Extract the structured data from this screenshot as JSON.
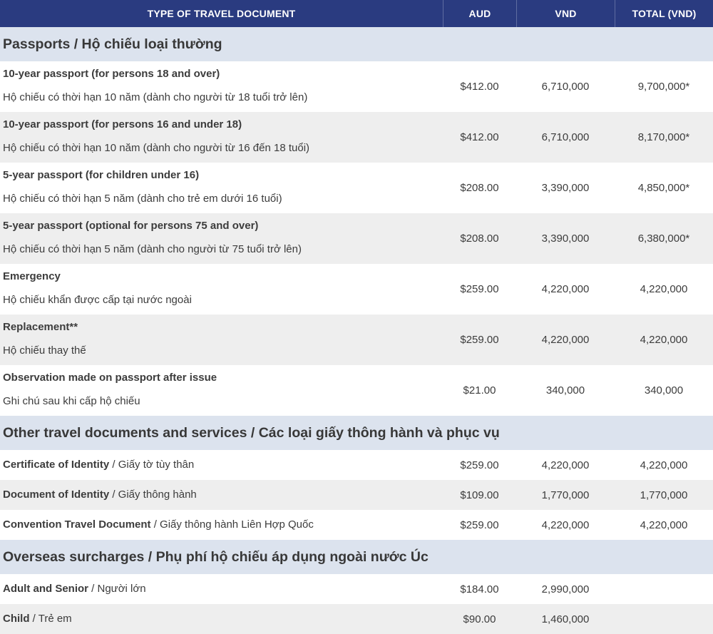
{
  "table": {
    "header": {
      "type": "TYPE OF TRAVEL DOCUMENT",
      "aud": "AUD",
      "vnd": "VND",
      "total": "TOTAL (VND)"
    },
    "sections": [
      {
        "title": "Passports / Hộ chiếu loại thường",
        "rows": [
          {
            "en": "10-year passport (for persons 18 and over)",
            "vi": "Hộ chiếu có thời hạn 10 năm (dành cho người từ 18 tuổi trở lên)",
            "aud": "$412.00",
            "vnd": "6,710,000",
            "total": "9,700,000*",
            "inline": false
          },
          {
            "en": "10-year passport (for persons 16 and under 18)",
            "vi": "Hộ chiếu có thời hạn 10 năm (dành cho người từ 16 đến 18 tuổi)",
            "aud": "$412.00",
            "vnd": "6,710,000",
            "total": "8,170,000*",
            "inline": false
          },
          {
            "en": "5-year passport (for children under 16)",
            "vi": "Hộ chiếu có thời hạn 5 năm (dành cho trẻ em dưới 16 tuổi)",
            "aud": "$208.00",
            "vnd": "3,390,000",
            "total": "4,850,000*",
            "inline": false
          },
          {
            "en": "5-year passport (optional for persons 75 and over)",
            "vi": "Hộ chiếu có thời hạn 5 năm (dành cho người từ 75 tuổi trở lên)",
            "aud": "$208.00",
            "vnd": "3,390,000",
            "total": "6,380,000*",
            "inline": false
          },
          {
            "en": "Emergency",
            "vi": "Hộ chiếu khẩn được cấp tại nước ngoài",
            "aud": "$259.00",
            "vnd": "4,220,000",
            "total": "4,220,000",
            "inline": false
          },
          {
            "en": "Replacement**",
            "vi": "Hộ chiếu thay thế",
            "aud": "$259.00",
            "vnd": "4,220,000",
            "total": "4,220,000",
            "inline": false
          },
          {
            "en": "Observation made on passport after issue",
            "vi": "Ghi chú sau khi cấp hộ chiếu",
            "aud": "$21.00",
            "vnd": "340,000",
            "total": "340,000",
            "inline": false
          }
        ]
      },
      {
        "title": "Other travel documents and services / Các loại giấy thông hành và phục vụ",
        "rows": [
          {
            "en": "Certificate of Identity",
            "vi": "Giấy tờ tùy thân",
            "aud": "$259.00",
            "vnd": "4,220,000",
            "total": "4,220,000",
            "inline": true
          },
          {
            "en": "Document of Identity",
            "vi": "Giấy thông hành",
            "aud": "$109.00",
            "vnd": "1,770,000",
            "total": "1,770,000",
            "inline": true
          },
          {
            "en": "Convention Travel Document",
            "vi": "Giấy thông hành Liên Hợp Quốc",
            "aud": "$259.00",
            "vnd": "4,220,000",
            "total": "4,220,000",
            "inline": true
          }
        ]
      },
      {
        "title": "Overseas surcharges / Phụ phí hộ chiếu áp dụng ngoài nước Úc",
        "rows": [
          {
            "en": "Adult and Senior",
            "vi": "Người lớn",
            "aud": "$184.00",
            "vnd": "2,990,000",
            "total": "",
            "inline": true
          },
          {
            "en": "Child",
            "vi": "Trẻ em",
            "aud": "$90.00",
            "vnd": "1,460,000",
            "total": "",
            "inline": true
          }
        ]
      }
    ],
    "separator": " / "
  },
  "colors": {
    "header_bg": "#2a3b80",
    "header_text": "#ffffff",
    "section_band_bg": "#dce3ee",
    "row_alt_bg": "#eeeeee",
    "text": "#3c3c3c"
  }
}
